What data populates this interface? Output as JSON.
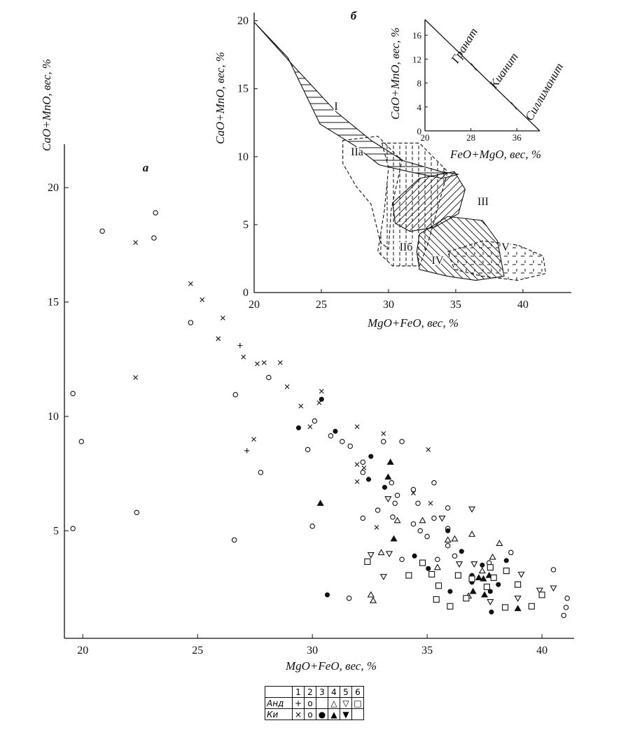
{
  "chart_data": [
    {
      "type": "scatter",
      "panel_label": "а",
      "x_label": "MgO+FeO, вес, %",
      "y_label": "CaO+MnO, вес, %",
      "xlim": [
        19.2,
        41.4
      ],
      "ylim": [
        0.3,
        21.9
      ],
      "xticks": [
        20,
        25,
        30,
        35,
        40
      ],
      "yticks": [
        5,
        10,
        15,
        20
      ],
      "series": [
        {
          "marker": "plus",
          "color": "#111",
          "x": [
            26.85,
            27.15
          ],
          "values": [
            13.1,
            8.5
          ]
        },
        {
          "marker": "circle",
          "color": "#111",
          "x": [
            23.17,
            23.1,
            20.85,
            19.57,
            19.94,
            19.57,
            22.35,
            24.7,
            26.65,
            26.6,
            28.1,
            27.75,
            29.8,
            30.0,
            30.1,
            30.8,
            31.3,
            31.65,
            32.2,
            32.2,
            32.2,
            32.85,
            33.1,
            33.9,
            33.45,
            33.6,
            33.5,
            34.4,
            34.6,
            35.3,
            34.4,
            34.7,
            35.0,
            35.3,
            35.9,
            35.9,
            35.9,
            33.9,
            31.6,
            35.45,
            36.2,
            37.7,
            38.65,
            40.5,
            41.1,
            41.05,
            40.95,
            33.7
          ],
          "values": [
            18.9,
            17.8,
            18.1,
            11.0,
            8.9,
            5.1,
            5.8,
            14.1,
            10.95,
            4.6,
            11.7,
            7.55,
            8.55,
            5.2,
            9.8,
            9.15,
            8.9,
            8.7,
            7.55,
            8.0,
            5.55,
            5.9,
            8.9,
            8.9,
            7.1,
            6.2,
            5.6,
            6.8,
            6.2,
            7.1,
            5.3,
            5.0,
            4.75,
            5.55,
            6.0,
            5.1,
            4.35,
            3.75,
            2.05,
            3.75,
            3.9,
            3.6,
            4.05,
            3.3,
            2.05,
            1.65,
            1.3,
            6.55
          ]
        },
        {
          "marker": "cross",
          "color": "#111",
          "x": [
            22.3,
            22.3,
            24.7,
            25.2,
            26.1,
            25.9,
            27.0,
            27.6,
            27.9,
            28.6,
            28.9,
            29.5,
            30.4,
            30.3,
            29.9,
            27.45,
            31.95,
            33.1,
            35.05,
            31.95,
            32.25,
            31.95,
            34.4,
            35.15,
            32.8
          ],
          "values": [
            17.6,
            11.7,
            15.8,
            15.1,
            14.3,
            13.4,
            12.6,
            12.3,
            12.35,
            12.35,
            11.3,
            10.45,
            11.1,
            10.6,
            9.55,
            9.0,
            9.55,
            9.25,
            8.55,
            7.9,
            7.75,
            7.15,
            6.65,
            6.2,
            5.15
          ]
        },
        {
          "marker": "dot",
          "color": "#111",
          "x": [
            29.4,
            30.4,
            31.0,
            32.55,
            32.45,
            33.15,
            30.65,
            34.45,
            35.05,
            35.9,
            36.5,
            37.4,
            36.95,
            38.1,
            37.75,
            38.45,
            37.8,
            36.0,
            36.95
          ],
          "values": [
            9.5,
            10.75,
            9.35,
            8.25,
            7.25,
            6.9,
            2.2,
            3.9,
            3.35,
            5.0,
            4.1,
            3.5,
            3.05,
            2.65,
            2.35,
            3.7,
            1.45,
            2.35,
            2.75
          ]
        },
        {
          "marker": "triangle-filled",
          "color": "#111",
          "x": [
            33.4,
            33.3,
            30.35,
            33.55,
            37.25,
            37.45,
            37.7,
            37.0,
            37.5,
            38.95
          ],
          "values": [
            8.0,
            7.35,
            6.2,
            4.65,
            2.95,
            2.9,
            3.05,
            2.35,
            2.2,
            1.6
          ]
        },
        {
          "marker": "triangle",
          "color": "#111",
          "x": [
            33.7,
            34.8,
            33.0,
            32.55,
            32.65,
            35.9,
            36.2,
            36.95,
            38.15,
            37.85,
            37.4,
            35.45,
            36.8,
            38.95
          ],
          "values": [
            5.45,
            5.45,
            4.05,
            2.2,
            1.95,
            4.6,
            4.65,
            4.85,
            4.45,
            3.85,
            3.25,
            3.4,
            2.15,
            2.65
          ]
        },
        {
          "marker": "triangle-down",
          "color": "#111",
          "x": [
            36.95,
            35.65,
            33.3,
            33.35,
            32.55,
            33.1,
            36.4,
            37.05,
            39.1,
            39.9,
            40.5,
            37.75,
            38.95
          ],
          "values": [
            5.95,
            5.55,
            6.4,
            4.0,
            3.95,
            3.0,
            3.55,
            3.55,
            3.1,
            2.4,
            2.5,
            1.9,
            2.05
          ]
        },
        {
          "marker": "square",
          "color": "#111",
          "x": [
            32.4,
            34.2,
            34.8,
            35.2,
            35.5,
            35.4,
            36.0,
            36.35,
            36.7,
            37.6,
            37.9,
            38.45,
            38.95,
            38.4,
            39.55,
            40.0,
            36.95,
            37.75
          ],
          "values": [
            3.65,
            3.05,
            3.6,
            3.1,
            2.6,
            2.0,
            1.7,
            3.05,
            2.05,
            2.55,
            2.95,
            3.25,
            2.65,
            1.65,
            1.7,
            2.2,
            2.9,
            3.4
          ]
        }
      ]
    },
    {
      "type": "region",
      "panel_label": "б",
      "x_label": "MgO+FeO, вес, %",
      "y_label": "CaO+MnO, вес, %",
      "xlim": [
        20,
        43.6
      ],
      "ylim": [
        0,
        20.6
      ],
      "xticks": [
        20,
        25,
        30,
        35,
        40
      ],
      "yticks": [
        0,
        5,
        10,
        15,
        20
      ],
      "fields": [
        {
          "label": "I",
          "outline": "solid",
          "hatch": "horizontal",
          "points": [
            [
              20,
              19.9
            ],
            [
              23,
              16.6
            ],
            [
              26.1,
              13.3
            ],
            [
              28.7,
              11.2
            ],
            [
              31.1,
              9.7
            ],
            [
              33.9,
              8.9
            ],
            [
              35.2,
              8.7
            ],
            [
              34,
              8.4
            ],
            [
              31.5,
              8.9
            ],
            [
              29.3,
              9.4
            ],
            [
              27.5,
              10.8
            ],
            [
              24.9,
              12.4
            ],
            [
              22.5,
              17.3
            ]
          ]
        },
        {
          "label": "IIа",
          "outline": "dashed",
          "hatch": "none",
          "points": [
            [
              26.6,
              11.2
            ],
            [
              29.2,
              11.5
            ],
            [
              31,
              9.7
            ],
            [
              30.2,
              6.1
            ],
            [
              30,
              3.2
            ],
            [
              29.4,
              3.7
            ],
            [
              28.7,
              6.5
            ],
            [
              27.6,
              7.8
            ],
            [
              26.6,
              9.5
            ]
          ]
        },
        {
          "label": "IIб",
          "outline": "dashed",
          "hatch": "vertical",
          "points": [
            [
              29.5,
              11
            ],
            [
              32.3,
              11
            ],
            [
              34.4,
              8.9
            ],
            [
              32.9,
              3.5
            ],
            [
              32.3,
              1.96
            ],
            [
              30.3,
              1.96
            ],
            [
              29.2,
              3
            ],
            [
              29.7,
              6.1
            ],
            [
              30,
              9.2
            ]
          ]
        },
        {
          "label": "III",
          "outline": "solid",
          "hatch": "diagonal",
          "points": [
            [
              30.3,
              6.6
            ],
            [
              32.3,
              8.4
            ],
            [
              34.9,
              8.9
            ],
            [
              35.7,
              7.6
            ],
            [
              35.2,
              5.8
            ],
            [
              33.4,
              4.8
            ],
            [
              31.6,
              4.5
            ],
            [
              30.5,
              5.1
            ]
          ]
        },
        {
          "label": "IV",
          "outline": "solid",
          "hatch": "antidiagonal",
          "points": [
            [
              32.3,
              4.3
            ],
            [
              34.4,
              5.6
            ],
            [
              37,
              5.3
            ],
            [
              38.1,
              3.8
            ],
            [
              38.6,
              1.2
            ],
            [
              36.5,
              0.9
            ],
            [
              34.4,
              1.2
            ],
            [
              32.3,
              1.7
            ],
            [
              32.1,
              3
            ]
          ]
        },
        {
          "label": "V",
          "outline": "dashed",
          "hatch": "cross",
          "points": [
            [
              34.4,
              3
            ],
            [
              37,
              3.8
            ],
            [
              39.6,
              3.5
            ],
            [
              41.5,
              2.7
            ],
            [
              41.7,
              1.4
            ],
            [
              39.6,
              0.9
            ],
            [
              37,
              1.2
            ],
            [
              34.9,
              1.7
            ]
          ]
        }
      ]
    },
    {
      "type": "line",
      "x_label": "FeO+MgO, вес, %",
      "y_label": "CaO+MnO, вес, %",
      "xlim": [
        20,
        40
      ],
      "ylim": [
        0,
        18.6
      ],
      "xticks": [
        20,
        28,
        36
      ],
      "yticks": [
        0,
        4,
        8,
        12,
        16
      ],
      "x": [
        20,
        40
      ],
      "values": [
        18.6,
        0
      ],
      "marks_x": [
        28.5,
        35.5
      ],
      "annotations": [
        "Гранат",
        "Кианит",
        "Силлиманит"
      ]
    }
  ],
  "legend_table": {
    "rows": [
      [
        null,
        "1",
        "2",
        "3",
        "4",
        "5",
        "6"
      ],
      [
        "Анд",
        "+",
        "o",
        null,
        "△",
        "▽",
        "□"
      ],
      [
        "Ки",
        "×",
        "o",
        "●",
        "▲",
        "▼",
        null
      ]
    ]
  }
}
